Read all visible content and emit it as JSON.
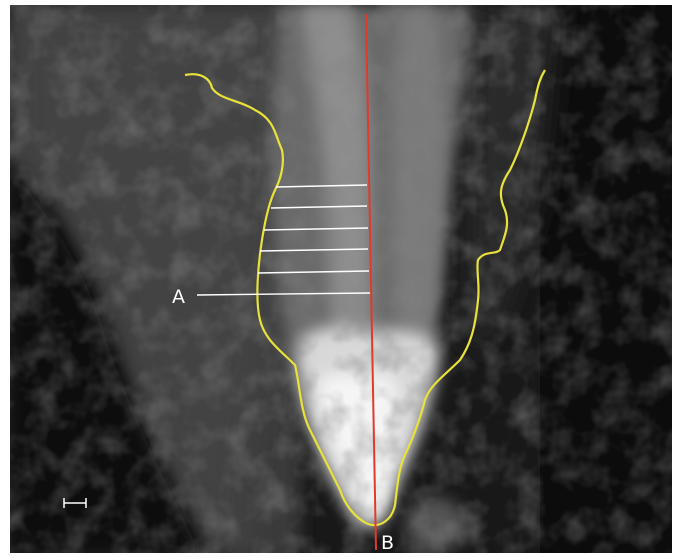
{
  "figure": {
    "labels": {
      "a": "A",
      "b": "B"
    },
    "colors": {
      "outline": "#e8e23a",
      "midline": "#e03a2e",
      "measure_lines": "#ffffff",
      "background": "#1c1c1c"
    },
    "scale_bar_icon": "scale-bar-icon"
  }
}
